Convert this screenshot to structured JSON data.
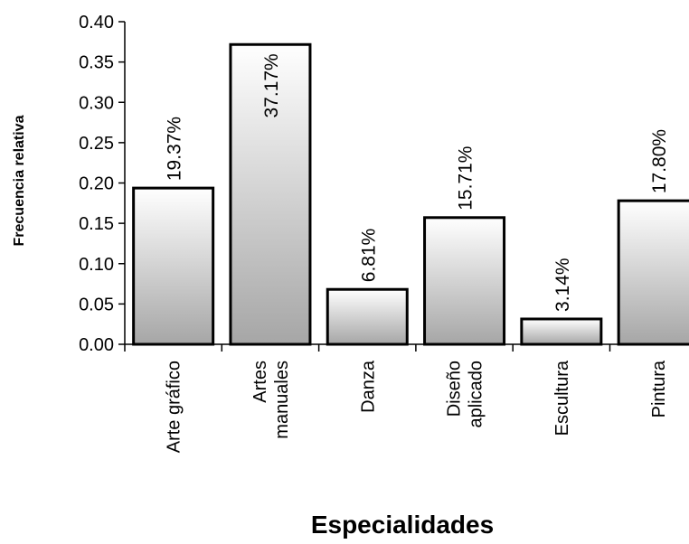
{
  "chart_data": {
    "type": "bar",
    "categories": [
      [
        "Arte gráfico"
      ],
      [
        "Artes",
        "manuales"
      ],
      [
        "Danza"
      ],
      [
        "Diseño",
        "aplicado"
      ],
      [
        "Escultura"
      ],
      [
        "Pintura"
      ]
    ],
    "values": [
      0.1937,
      0.3717,
      0.0681,
      0.1571,
      0.0314,
      0.178
    ],
    "data_labels": [
      "19.37%",
      "37.17%",
      "6.81%",
      "15.71%",
      "3.14%",
      "17.80%"
    ],
    "title": "",
    "xlabel": "Especialidades",
    "ylabel": "Frecuencia relativa",
    "ylim": [
      0,
      0.4
    ],
    "yticks": [
      "0.00",
      "0.05",
      "0.10",
      "0.15",
      "0.20",
      "0.25",
      "0.30",
      "0.35",
      "0.40"
    ],
    "grid": false,
    "legend": "none",
    "colors": {
      "bar_top": "#ffffff",
      "bar_bottom": "#a6a6a6",
      "outline": "#000000"
    }
  }
}
